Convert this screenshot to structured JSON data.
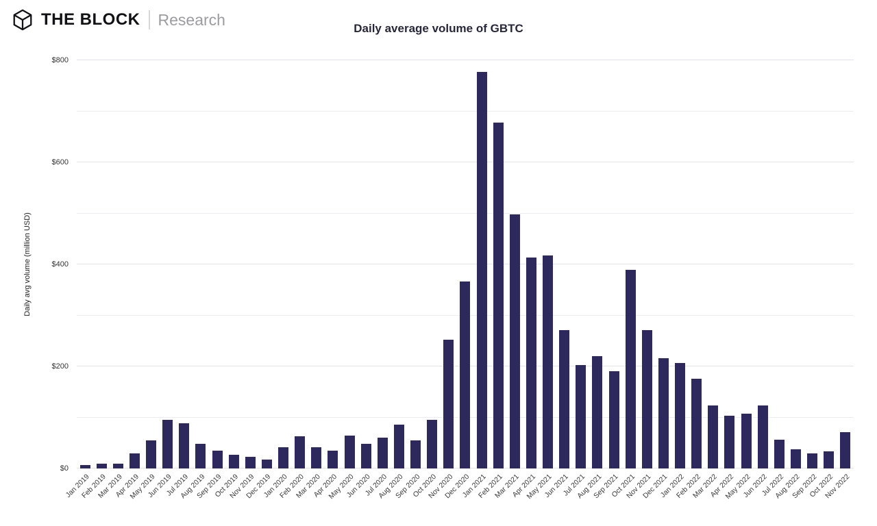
{
  "header": {
    "brand": "THE BLOCK",
    "research": "Research"
  },
  "chart_data": {
    "type": "bar",
    "title": "Daily average volume of GBTC",
    "xlabel": "",
    "ylabel": "Daily avg volume (million USD)",
    "ylim": [
      0,
      800
    ],
    "gridline_step": 100,
    "grid": true,
    "legend_position": "none",
    "bar_color": "#2e295c",
    "grid_color": "#ececf2",
    "yticks": [
      {
        "value": 0,
        "label": "$0"
      },
      {
        "value": 200,
        "label": "$200"
      },
      {
        "value": 400,
        "label": "$400"
      },
      {
        "value": 600,
        "label": "$600"
      },
      {
        "value": 800,
        "label": "$800"
      }
    ],
    "categories": [
      "Jan 2019",
      "Feb 2019",
      "Mar 2019",
      "Apr 2019",
      "May 2019",
      "Jun 2019",
      "Jul 2019",
      "Aug 2019",
      "Sep 2019",
      "Oct 2019",
      "Nov 2019",
      "Dec 2019",
      "Jan 2020",
      "Feb 2020",
      "Mar 2020",
      "Apr 2020",
      "May 2020",
      "Jun 2020",
      "Jul 2020",
      "Aug 2020",
      "Sep 2020",
      "Oct 2020",
      "Nov 2020",
      "Dec 2020",
      "Jan 2021",
      "Feb 2021",
      "Mar 2021",
      "Apr 2021",
      "May 2021",
      "Jun 2021",
      "Jul 2021",
      "Aug 2021",
      "Sep 2021",
      "Oct 2021",
      "Nov 2021",
      "Dec 2021",
      "Jan 2022",
      "Feb 2022",
      "Mar 2022",
      "Apr 2022",
      "May 2022",
      "Jun 2022",
      "Jul 2022",
      "Aug 2022",
      "Sep 2022",
      "Oct 2022",
      "Nov 2022"
    ],
    "values": [
      7,
      10,
      9,
      30,
      55,
      95,
      88,
      48,
      35,
      27,
      23,
      18,
      41,
      63,
      42,
      35,
      65,
      48,
      61,
      86,
      55,
      95,
      252,
      367,
      777,
      678,
      498,
      413,
      418,
      271,
      203,
      220,
      190,
      389,
      271,
      216,
      207,
      176,
      124,
      104,
      108,
      123,
      56,
      38,
      29,
      34,
      71
    ]
  }
}
